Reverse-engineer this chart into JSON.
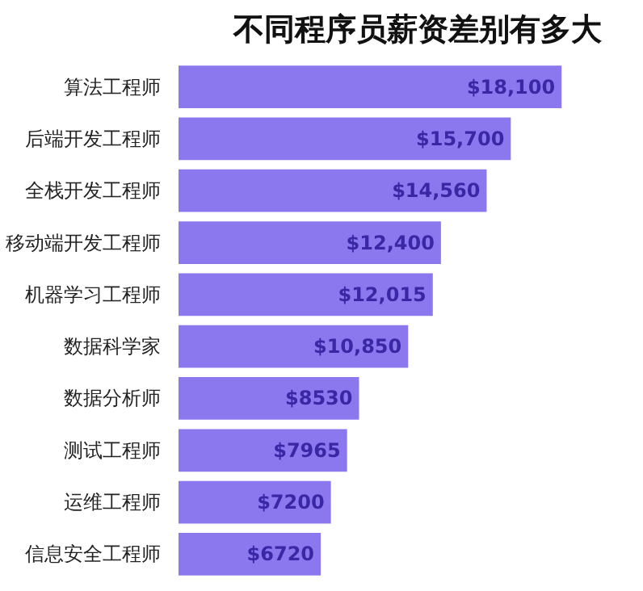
{
  "chart_data": {
    "type": "bar",
    "orientation": "horizontal",
    "title": "不同程序员薪资差别有多大",
    "categories": [
      "算法工程师",
      "后端开发工程师",
      "全栈开发工程师",
      "移动端开发工程师",
      "机器学习工程师",
      "数据科学家",
      "数据分析师",
      "测试工程师",
      "运维工程师",
      "信息安全工程师"
    ],
    "values": [
      18100,
      15700,
      14560,
      12400,
      12015,
      10850,
      8530,
      7965,
      7200,
      6720
    ],
    "value_labels": [
      "$18,100",
      "$15,700",
      "$14,560",
      "$12,400",
      "$12,015",
      "$10,850",
      "$8530",
      "$7965",
      "$7200",
      "$6720"
    ],
    "color": "#8b78ee",
    "grid": false
  }
}
